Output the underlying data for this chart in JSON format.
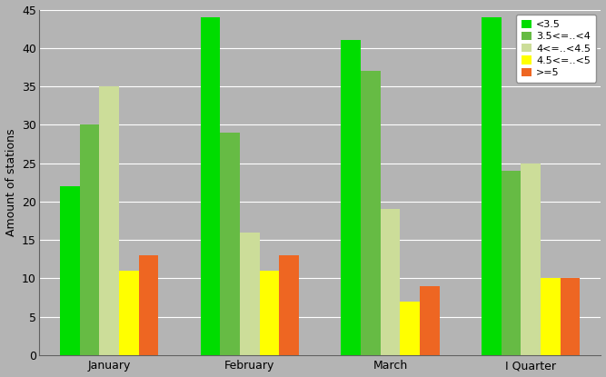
{
  "categories": [
    "January",
    "February",
    "March",
    "I Quarter"
  ],
  "series": [
    {
      "label": "<3.5",
      "color": "#00dd00",
      "values": [
        22,
        44,
        41,
        44
      ]
    },
    {
      "label": "3.5<=..<4",
      "color": "#66bb44",
      "values": [
        30,
        29,
        37,
        24
      ]
    },
    {
      "label": "4<=..<4.5",
      "color": "#ccdd99",
      "values": [
        35,
        16,
        19,
        25
      ]
    },
    {
      "label": "4.5<=..<5",
      "color": "#ffff00",
      "values": [
        11,
        11,
        7,
        10
      ]
    },
    {
      "label": ">=5",
      "color": "#ee6622",
      "values": [
        13,
        13,
        9,
        10
      ]
    }
  ],
  "ylabel": "Amount of stations",
  "ylim": [
    0,
    45
  ],
  "yticks": [
    0,
    5,
    10,
    15,
    20,
    25,
    30,
    35,
    40,
    45
  ],
  "plot_bg_color": "#b4b4b4",
  "fig_bg_color": "#b4b4b4",
  "grid_color": "#ffffff",
  "legend_fontsize": 8,
  "ylabel_fontsize": 9,
  "tick_fontsize": 9,
  "bar_width": 0.14,
  "group_width": 0.78
}
